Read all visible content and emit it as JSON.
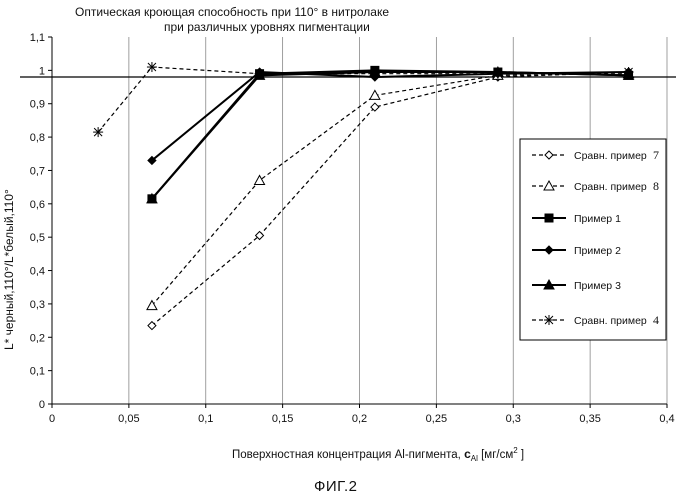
{
  "title": {
    "line1": "Оптическая кроющая способность при 110°    в нитролаке",
    "line2": "при различных уровнях пигментации"
  },
  "figure_label": "ФИГ.2",
  "chart_data": {
    "type": "line",
    "xlabel_text": "Поверхностная концентрация Al-пигмента,",
    "xlabel_symbol": "c",
    "xlabel_symbol_sub": "Al",
    "xlabel_units": "[мг/см",
    "xlabel_units_sup": "2",
    "xlabel_units_end": "]",
    "ylabel": "L* черный,110°/L*белый,110°",
    "xlim": [
      0,
      0.4
    ],
    "ylim": [
      0,
      1.1
    ],
    "x_ticks": [
      "0",
      "0,05",
      "0,1",
      "0,15",
      "0,2",
      "0,25",
      "0,3",
      "0,35",
      "0,4"
    ],
    "y_ticks": [
      "0",
      "0,1",
      "0,2",
      "0,3",
      "0,4",
      "0,5",
      "0,6",
      "0,7",
      "0,8",
      "0,9",
      "1",
      "1,1"
    ],
    "x_tick_values": [
      0,
      0.05,
      0.1,
      0.15,
      0.2,
      0.25,
      0.3,
      0.35,
      0.4
    ],
    "y_tick_values": [
      0,
      0.1,
      0.2,
      0.3,
      0.4,
      0.5,
      0.6,
      0.7,
      0.8,
      0.9,
      1.0,
      1.1
    ],
    "grid": "vertical",
    "reference_line_y": 0.98,
    "legend_position": "right",
    "series": [
      {
        "name": "Сравн. пример",
        "suffix": "7",
        "marker": "diamond-open",
        "dash": true,
        "x": [
          0.065,
          0.135,
          0.21,
          0.29,
          0.375
        ],
        "y": [
          0.235,
          0.505,
          0.89,
          0.98,
          0.995
        ]
      },
      {
        "name": "Сравн. пример",
        "suffix": "8",
        "marker": "triangle-open",
        "dash": true,
        "x": [
          0.065,
          0.135,
          0.21,
          0.29,
          0.375
        ],
        "y": [
          0.295,
          0.67,
          0.925,
          0.985,
          0.99
        ]
      },
      {
        "name": "Пример 1",
        "suffix": "",
        "marker": "square",
        "dash": false,
        "x": [
          0.065,
          0.135,
          0.21,
          0.29,
          0.375
        ],
        "y": [
          0.615,
          0.99,
          1.0,
          0.995,
          0.985
        ]
      },
      {
        "name": "Пример 2",
        "suffix": "",
        "marker": "diamond",
        "dash": false,
        "x": [
          0.065,
          0.135,
          0.21,
          0.29,
          0.375
        ],
        "y": [
          0.73,
          0.995,
          0.98,
          0.99,
          0.995
        ]
      },
      {
        "name": "Пример 3",
        "suffix": "",
        "marker": "triangle",
        "dash": false,
        "x": [
          0.065,
          0.135,
          0.21,
          0.29,
          0.375
        ],
        "y": [
          0.615,
          0.985,
          0.995,
          0.995,
          0.985
        ]
      },
      {
        "name": "Сравн. пример",
        "suffix": "4",
        "marker": "star",
        "dash": true,
        "x": [
          0.03,
          0.065,
          0.135,
          0.21,
          0.29,
          0.375
        ],
        "y": [
          0.815,
          1.01,
          0.99,
          0.99,
          0.99,
          0.995
        ]
      }
    ]
  }
}
